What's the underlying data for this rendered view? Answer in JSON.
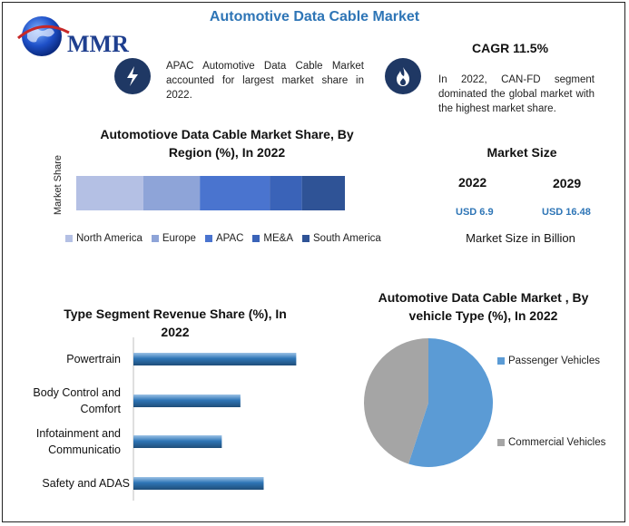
{
  "title": "Automotive Data Cable Market",
  "logo": {
    "text": "MMR"
  },
  "cagr": "CAGR 11.5%",
  "notes": {
    "apac": "APAC Automotive Data Cable Market accounted for largest market share in 2022.",
    "canfd": "In 2022, CAN-FD segment dominated the global market with the highest market share."
  },
  "icons": {
    "lightning": "lightning-icon",
    "flame": "flame-icon"
  },
  "market_size": {
    "title": "Market Size",
    "year_a": "2022",
    "value_a": "USD 6.9",
    "year_b": "2029",
    "value_b": "USD 16.48",
    "caption": "Market Size in Billion"
  },
  "chart_data": [
    {
      "type": "bar",
      "stacked": true,
      "orientation": "horizontal",
      "title": "Automotiove Data Cable Market Share, By Region (%), In 2022",
      "ylabel": "Market Share",
      "legend_position": "bottom",
      "series": [
        {
          "name": "North America",
          "values": [
            25
          ],
          "color": "#b4c0e4"
        },
        {
          "name": "Europe",
          "values": [
            21
          ],
          "color": "#8ea4d8"
        },
        {
          "name": "APAC",
          "values": [
            26
          ],
          "color": "#4a74cf"
        },
        {
          "name": "ME&A",
          "values": [
            12
          ],
          "color": "#3a63b8"
        },
        {
          "name": "South America",
          "values": [
            16
          ],
          "color": "#2f5396"
        }
      ]
    },
    {
      "type": "bar",
      "orientation": "horizontal",
      "title": "Type Segment Revenue Share (%), In 2022",
      "categories": [
        "Powertrain",
        "Body Control and Comfort",
        "Infotainment and Communicatio",
        "Safety and ADAS"
      ],
      "values": [
        35,
        23,
        19,
        28
      ],
      "xlim": [
        0,
        40
      ],
      "color": "#2e75b6"
    },
    {
      "type": "pie",
      "title": "Automotive Data Cable Market , By vehicle Type (%), In 2022",
      "legend_position": "right",
      "slices": [
        {
          "name": "Passenger Vehicles",
          "value": 55,
          "color": "#5b9bd5"
        },
        {
          "name": "Commercial Vehicles",
          "value": 45,
          "color": "#a5a5a5"
        }
      ]
    }
  ]
}
